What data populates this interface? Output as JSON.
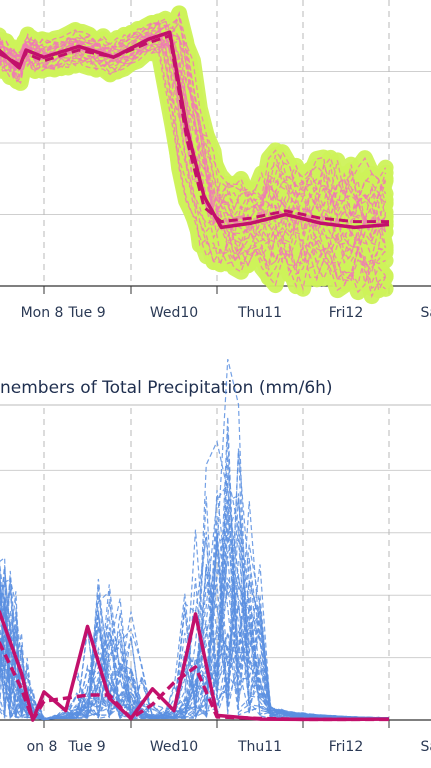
{
  "chart_data": [
    {
      "type": "line",
      "x_ticks": [
        "Mon 8",
        "Tue 9",
        "Wed10",
        "Thu11",
        "Fri12",
        "Sat"
      ],
      "x_range": [
        0,
        5.0
      ],
      "ylim": [
        0,
        4
      ],
      "grid": true,
      "plume_colors": {
        "envelope": "#cdf25a",
        "members": "#f07ab4",
        "main": "#c2106b"
      },
      "mean": {
        "x": [
          0,
          0.45,
          0.6,
          1.0,
          1.4,
          1.8,
          2.2,
          2.45,
          2.65,
          2.85,
          3.05,
          3.4,
          3.8,
          4.2,
          4.6,
          5.0
        ],
        "y": [
          3.3,
          3.05,
          3.3,
          3.2,
          3.35,
          3.2,
          3.45,
          3.55,
          2.2,
          1.25,
          0.82,
          0.88,
          1.0,
          0.88,
          0.82,
          0.86
        ]
      },
      "mean_dashed": {
        "x": [
          0,
          0.45,
          0.6,
          1.0,
          1.4,
          1.8,
          2.2,
          2.45,
          2.65,
          2.85,
          3.05,
          3.4,
          3.8,
          4.2,
          4.6,
          5.0
        ],
        "y": [
          3.25,
          3.1,
          3.25,
          3.15,
          3.3,
          3.2,
          3.4,
          3.5,
          2.05,
          1.1,
          0.9,
          0.95,
          1.05,
          0.95,
          0.9,
          0.9
        ]
      }
    },
    {
      "type": "line",
      "title": "nembers of Total Precipitation (mm/6h)",
      "x_ticks": [
        "on 8",
        "Tue 9",
        "Wed10",
        "Thu11",
        "Fri12",
        "Sat"
      ],
      "x_range": [
        0,
        5.0
      ],
      "ylim": [
        0,
        10
      ],
      "grid": true,
      "member_color": "#5b8fe0",
      "main_color": "#c2106b",
      "series": [
        {
          "values_x": [
            0,
            0.5,
            0.75,
            1.0,
            1.25,
            1.5,
            1.75,
            2.0,
            2.25,
            2.5,
            2.75,
            3.0,
            3.5,
            4.0,
            4.5,
            5.0
          ],
          "values": [
            3.5,
            1.5,
            0.0,
            0.9,
            0.3,
            3.0,
            0.7,
            0.05,
            1.0,
            0.3,
            3.4,
            0.15,
            0.03,
            0.02,
            0.02,
            0.03
          ]
        },
        {
          "values_x": [
            0,
            0.5,
            0.75,
            1.0,
            1.5,
            1.75,
            2.0,
            2.25,
            2.5,
            2.75,
            3.0,
            3.5,
            4.0,
            5.0
          ],
          "values": [
            2.5,
            1.0,
            0.0,
            0.6,
            0.8,
            0.8,
            0.05,
            0.5,
            1.2,
            1.7,
            0.1,
            0.05,
            0.02,
            0.02
          ]
        }
      ]
    }
  ]
}
